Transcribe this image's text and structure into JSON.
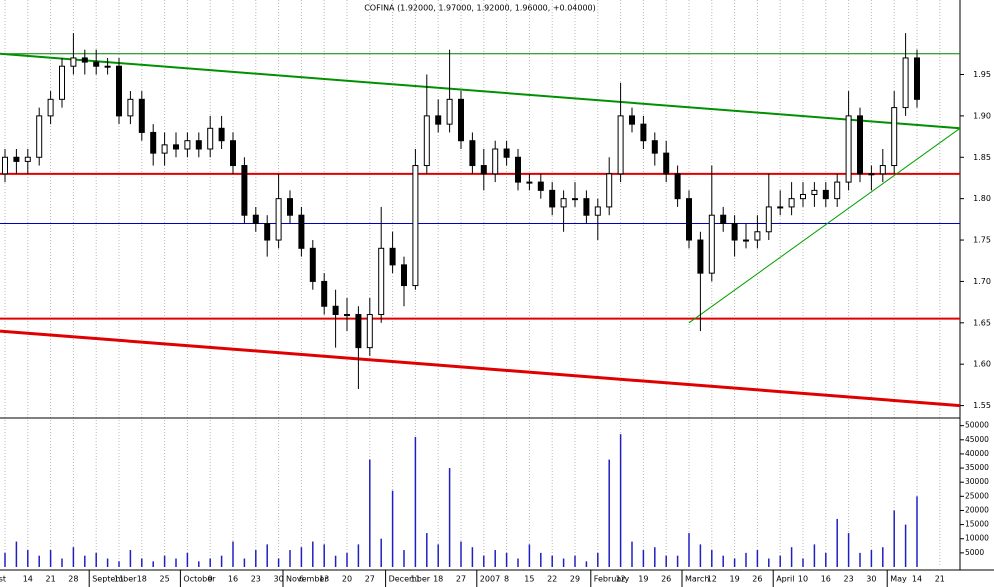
{
  "chart_data": {
    "type": "candlestick",
    "title": "COFINA (1.92000, 1.97000, 1.92000, 1.96000, +0.04000)",
    "categories": [
      null,
      null,
      "14",
      null,
      "21",
      null,
      "28",
      null,
      null,
      null,
      "11",
      null,
      "18",
      null,
      "25",
      null,
      null,
      null,
      "9",
      null,
      "16",
      null,
      "23",
      null,
      "30",
      null,
      "6",
      null,
      "13",
      null,
      "20",
      null,
      "27",
      null,
      null,
      null,
      "11",
      null,
      "18",
      null,
      "27",
      null,
      null,
      null,
      "8",
      null,
      "15",
      null,
      "22",
      null,
      "29",
      null,
      null,
      null,
      "12",
      null,
      "19",
      null,
      "26",
      null,
      null,
      null,
      "12",
      null,
      "19",
      null,
      "26",
      null,
      null,
      null,
      "10",
      null,
      "16",
      null,
      "23",
      null,
      "30",
      null,
      null,
      null,
      "14",
      null,
      "21",
      null
    ],
    "month_categories": [
      "August",
      null,
      null,
      null,
      null,
      null,
      null,
      null,
      "September",
      null,
      null,
      null,
      null,
      null,
      null,
      null,
      "October",
      null,
      null,
      null,
      null,
      null,
      null,
      null,
      null,
      "November",
      null,
      null,
      null,
      null,
      null,
      null,
      null,
      null,
      "December",
      null,
      null,
      null,
      null,
      null,
      null,
      null,
      "2007",
      null,
      null,
      null,
      null,
      null,
      null,
      null,
      null,
      null,
      "February",
      null,
      null,
      null,
      null,
      null,
      null,
      null,
      "March",
      null,
      null,
      null,
      null,
      null,
      null,
      null,
      "April",
      null,
      null,
      null,
      null,
      null,
      null,
      null,
      null,
      null,
      "May",
      null,
      null,
      null,
      null,
      null
    ],
    "open": [
      1.83,
      1.85,
      1.845,
      1.85,
      1.9,
      1.92,
      1.96,
      1.97,
      1.965,
      1.96,
      1.96,
      1.9,
      1.92,
      1.88,
      1.855,
      1.865,
      1.86,
      1.87,
      1.86,
      1.885,
      1.87,
      1.84,
      1.78,
      1.77,
      1.75,
      1.8,
      1.78,
      1.74,
      1.7,
      1.67,
      1.66,
      1.66,
      1.62,
      1.66,
      1.74,
      1.72,
      1.695,
      1.84,
      1.9,
      1.89,
      1.92,
      1.87,
      1.84,
      1.83,
      1.86,
      1.85,
      1.82,
      1.82,
      1.81,
      1.79,
      1.8,
      1.8,
      1.78,
      1.79,
      1.83,
      1.9,
      1.89,
      1.87,
      1.855,
      1.83,
      1.8,
      1.75,
      1.71,
      1.78,
      1.77,
      1.75,
      1.75,
      1.76,
      1.79,
      1.79,
      1.8,
      1.805,
      1.81,
      1.8,
      1.82,
      1.9,
      1.83,
      1.83,
      1.84,
      1.91,
      1.97,
      null,
      null,
      null
    ],
    "high": [
      1.86,
      1.86,
      1.86,
      1.91,
      1.93,
      1.97,
      2.0,
      1.98,
      1.98,
      1.97,
      1.97,
      1.93,
      1.93,
      1.89,
      1.88,
      1.88,
      1.88,
      1.88,
      1.9,
      1.9,
      1.88,
      1.85,
      1.79,
      1.78,
      1.83,
      1.81,
      1.79,
      1.75,
      1.71,
      1.69,
      1.68,
      1.67,
      1.68,
      1.79,
      1.76,
      1.73,
      1.86,
      1.95,
      1.92,
      1.98,
      1.93,
      1.88,
      1.86,
      1.87,
      1.87,
      1.86,
      1.83,
      1.83,
      1.82,
      1.81,
      1.82,
      1.81,
      1.8,
      1.85,
      1.94,
      1.91,
      1.9,
      1.88,
      1.87,
      1.84,
      1.81,
      1.76,
      1.84,
      1.79,
      1.78,
      1.77,
      1.78,
      1.83,
      1.81,
      1.82,
      1.82,
      1.82,
      1.82,
      1.83,
      1.93,
      1.91,
      1.84,
      1.86,
      1.93,
      2.0,
      1.98,
      null,
      null,
      null
    ],
    "low": [
      1.82,
      1.83,
      1.83,
      1.84,
      1.89,
      1.91,
      1.95,
      1.95,
      1.95,
      1.95,
      1.89,
      1.89,
      1.87,
      1.84,
      1.84,
      1.85,
      1.85,
      1.85,
      1.85,
      1.86,
      1.83,
      1.77,
      1.76,
      1.73,
      1.74,
      1.77,
      1.73,
      1.69,
      1.66,
      1.62,
      1.64,
      1.57,
      1.61,
      1.65,
      1.71,
      1.67,
      1.69,
      1.83,
      1.88,
      1.88,
      1.86,
      1.83,
      1.81,
      1.82,
      1.84,
      1.81,
      1.81,
      1.8,
      1.78,
      1.76,
      1.79,
      1.77,
      1.75,
      1.78,
      1.82,
      1.88,
      1.86,
      1.84,
      1.82,
      1.79,
      1.74,
      1.64,
      1.7,
      1.76,
      1.73,
      1.74,
      1.74,
      1.75,
      1.78,
      1.78,
      1.79,
      1.79,
      1.79,
      1.79,
      1.81,
      1.82,
      1.81,
      1.82,
      1.83,
      1.9,
      1.91,
      null,
      null,
      null
    ],
    "close": [
      1.85,
      1.845,
      1.85,
      1.9,
      1.92,
      1.96,
      1.97,
      1.965,
      1.96,
      1.96,
      1.9,
      1.92,
      1.88,
      1.855,
      1.865,
      1.86,
      1.87,
      1.86,
      1.885,
      1.87,
      1.84,
      1.78,
      1.77,
      1.75,
      1.8,
      1.78,
      1.74,
      1.7,
      1.67,
      1.66,
      1.66,
      1.62,
      1.66,
      1.74,
      1.72,
      1.695,
      1.84,
      1.9,
      1.89,
      1.92,
      1.87,
      1.84,
      1.83,
      1.86,
      1.85,
      1.82,
      1.82,
      1.81,
      1.79,
      1.8,
      1.8,
      1.78,
      1.79,
      1.83,
      1.9,
      1.89,
      1.87,
      1.855,
      1.83,
      1.8,
      1.75,
      1.71,
      1.78,
      1.77,
      1.75,
      1.75,
      1.76,
      1.79,
      1.79,
      1.8,
      1.805,
      1.81,
      1.8,
      1.82,
      1.9,
      1.83,
      1.83,
      1.84,
      1.91,
      1.97,
      1.92,
      null,
      null,
      null
    ],
    "volume": [
      5000,
      9000,
      6000,
      4000,
      6000,
      3000,
      7000,
      4000,
      5000,
      3000,
      2000,
      6000,
      3000,
      2000,
      4000,
      3000,
      5000,
      2000,
      3000,
      4000,
      9000,
      3000,
      6000,
      8000,
      3000,
      6000,
      7000,
      9000,
      8000,
      4000,
      5000,
      8000,
      38000,
      10000,
      27000,
      6000,
      46000,
      12000,
      8000,
      35000,
      9000,
      7000,
      4000,
      6000,
      5000,
      3000,
      8000,
      5000,
      4000,
      3000,
      4000,
      2000,
      5000,
      38000,
      47000,
      9000,
      6000,
      7000,
      4000,
      4000,
      12000,
      8000,
      6000,
      4000,
      3000,
      5000,
      6000,
      3000,
      4000,
      7000,
      3000,
      8000,
      5000,
      17000,
      12000,
      5000,
      6000,
      7000,
      20000,
      15000,
      25000,
      null,
      null,
      null
    ],
    "color": "#000000",
    "volume_color": "#2020c0",
    "ylim": [
      1.535,
      2.04
    ],
    "yticks": [
      1.55,
      {
        "value": 1.6,
        "label": "1.60"
      },
      1.65,
      {
        "value": 1.7,
        "label": "1.70"
      },
      1.75,
      {
        "value": 1.8,
        "label": "1.80"
      },
      1.85,
      {
        "value": 1.9,
        "label": "1.90"
      },
      1.95
    ],
    "y2lim": [
      0,
      52000
    ],
    "y2ticks": [
      5000,
      10000,
      15000,
      20000,
      25000,
      30000,
      35000,
      40000,
      45000,
      50000
    ],
    "hlines": [
      {
        "value": 1.975,
        "color": "#008000"
      },
      {
        "value": 1.83,
        "color": "#e00000"
      },
      {
        "value": 1.77,
        "color": "#0000c0"
      },
      {
        "value": 1.655,
        "color": "#e00000"
      }
    ],
    "trendlines": [
      {
        "values": [
          1.975,
          1.885
        ],
        "from": 0,
        "color": "#009000"
      },
      {
        "values": [
          1.64,
          1.55
        ],
        "from": 0,
        "color": "#e00000"
      },
      {
        "values": [
          1.65,
          1.885
        ],
        "from": 60,
        "color": "#00a000"
      }
    ],
    "grid": true
  }
}
